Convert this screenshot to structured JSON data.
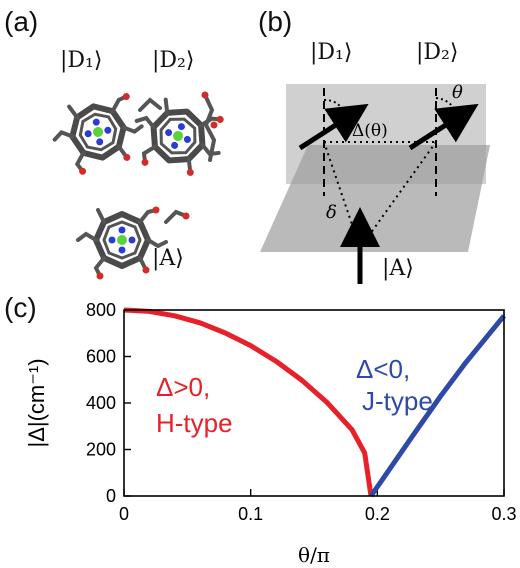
{
  "panels": {
    "a": "(a)",
    "b": "(b)",
    "c": "(c)"
  },
  "panel_a": {
    "labels": {
      "D1": "|D₁⟩",
      "D2": "|D₂⟩",
      "A": "|A⟩"
    },
    "molecule_icons": [
      "porphyrin-molecule-D1",
      "porphyrin-molecule-D2",
      "porphyrin-molecule-A"
    ]
  },
  "panel_b": {
    "labels": {
      "D1": "|D₁⟩",
      "D2": "|D₂⟩",
      "A": "|A⟩",
      "delta_theta": "Δ(θ)",
      "theta": "θ",
      "delta": "δ"
    }
  },
  "chart_data": {
    "type": "line",
    "xlabel": "θ/π",
    "ylabel": "|Δ|(cm⁻¹)",
    "xlim": [
      0,
      0.3
    ],
    "ylim": [
      0,
      800
    ],
    "xticks": [
      "0",
      "0.1",
      "0.2",
      "0.3"
    ],
    "yticks": [
      "0",
      "200",
      "400",
      "600",
      "800"
    ],
    "grid": false,
    "series": [
      {
        "color": "#e8202a",
        "x": [
          0.0,
          0.02,
          0.04,
          0.06,
          0.08,
          0.1,
          0.12,
          0.14,
          0.16,
          0.18,
          0.19,
          0.195
        ],
        "y": [
          800,
          794,
          775,
          745,
          701,
          647,
          580,
          500,
          404,
          285,
          185,
          0
        ]
      },
      {
        "color": "#2e4aa6",
        "x": [
          0.195,
          0.21,
          0.23,
          0.25,
          0.27,
          0.3
        ],
        "y": [
          0,
          118,
          275,
          430,
          575,
          775
        ]
      }
    ],
    "annotations": [
      {
        "lines": [
          "Δ>0,",
          "H-type"
        ],
        "color": "#e8202a"
      },
      {
        "lines": [
          "Δ<0,",
          "J-type"
        ],
        "color": "#2e4aa6"
      }
    ]
  }
}
